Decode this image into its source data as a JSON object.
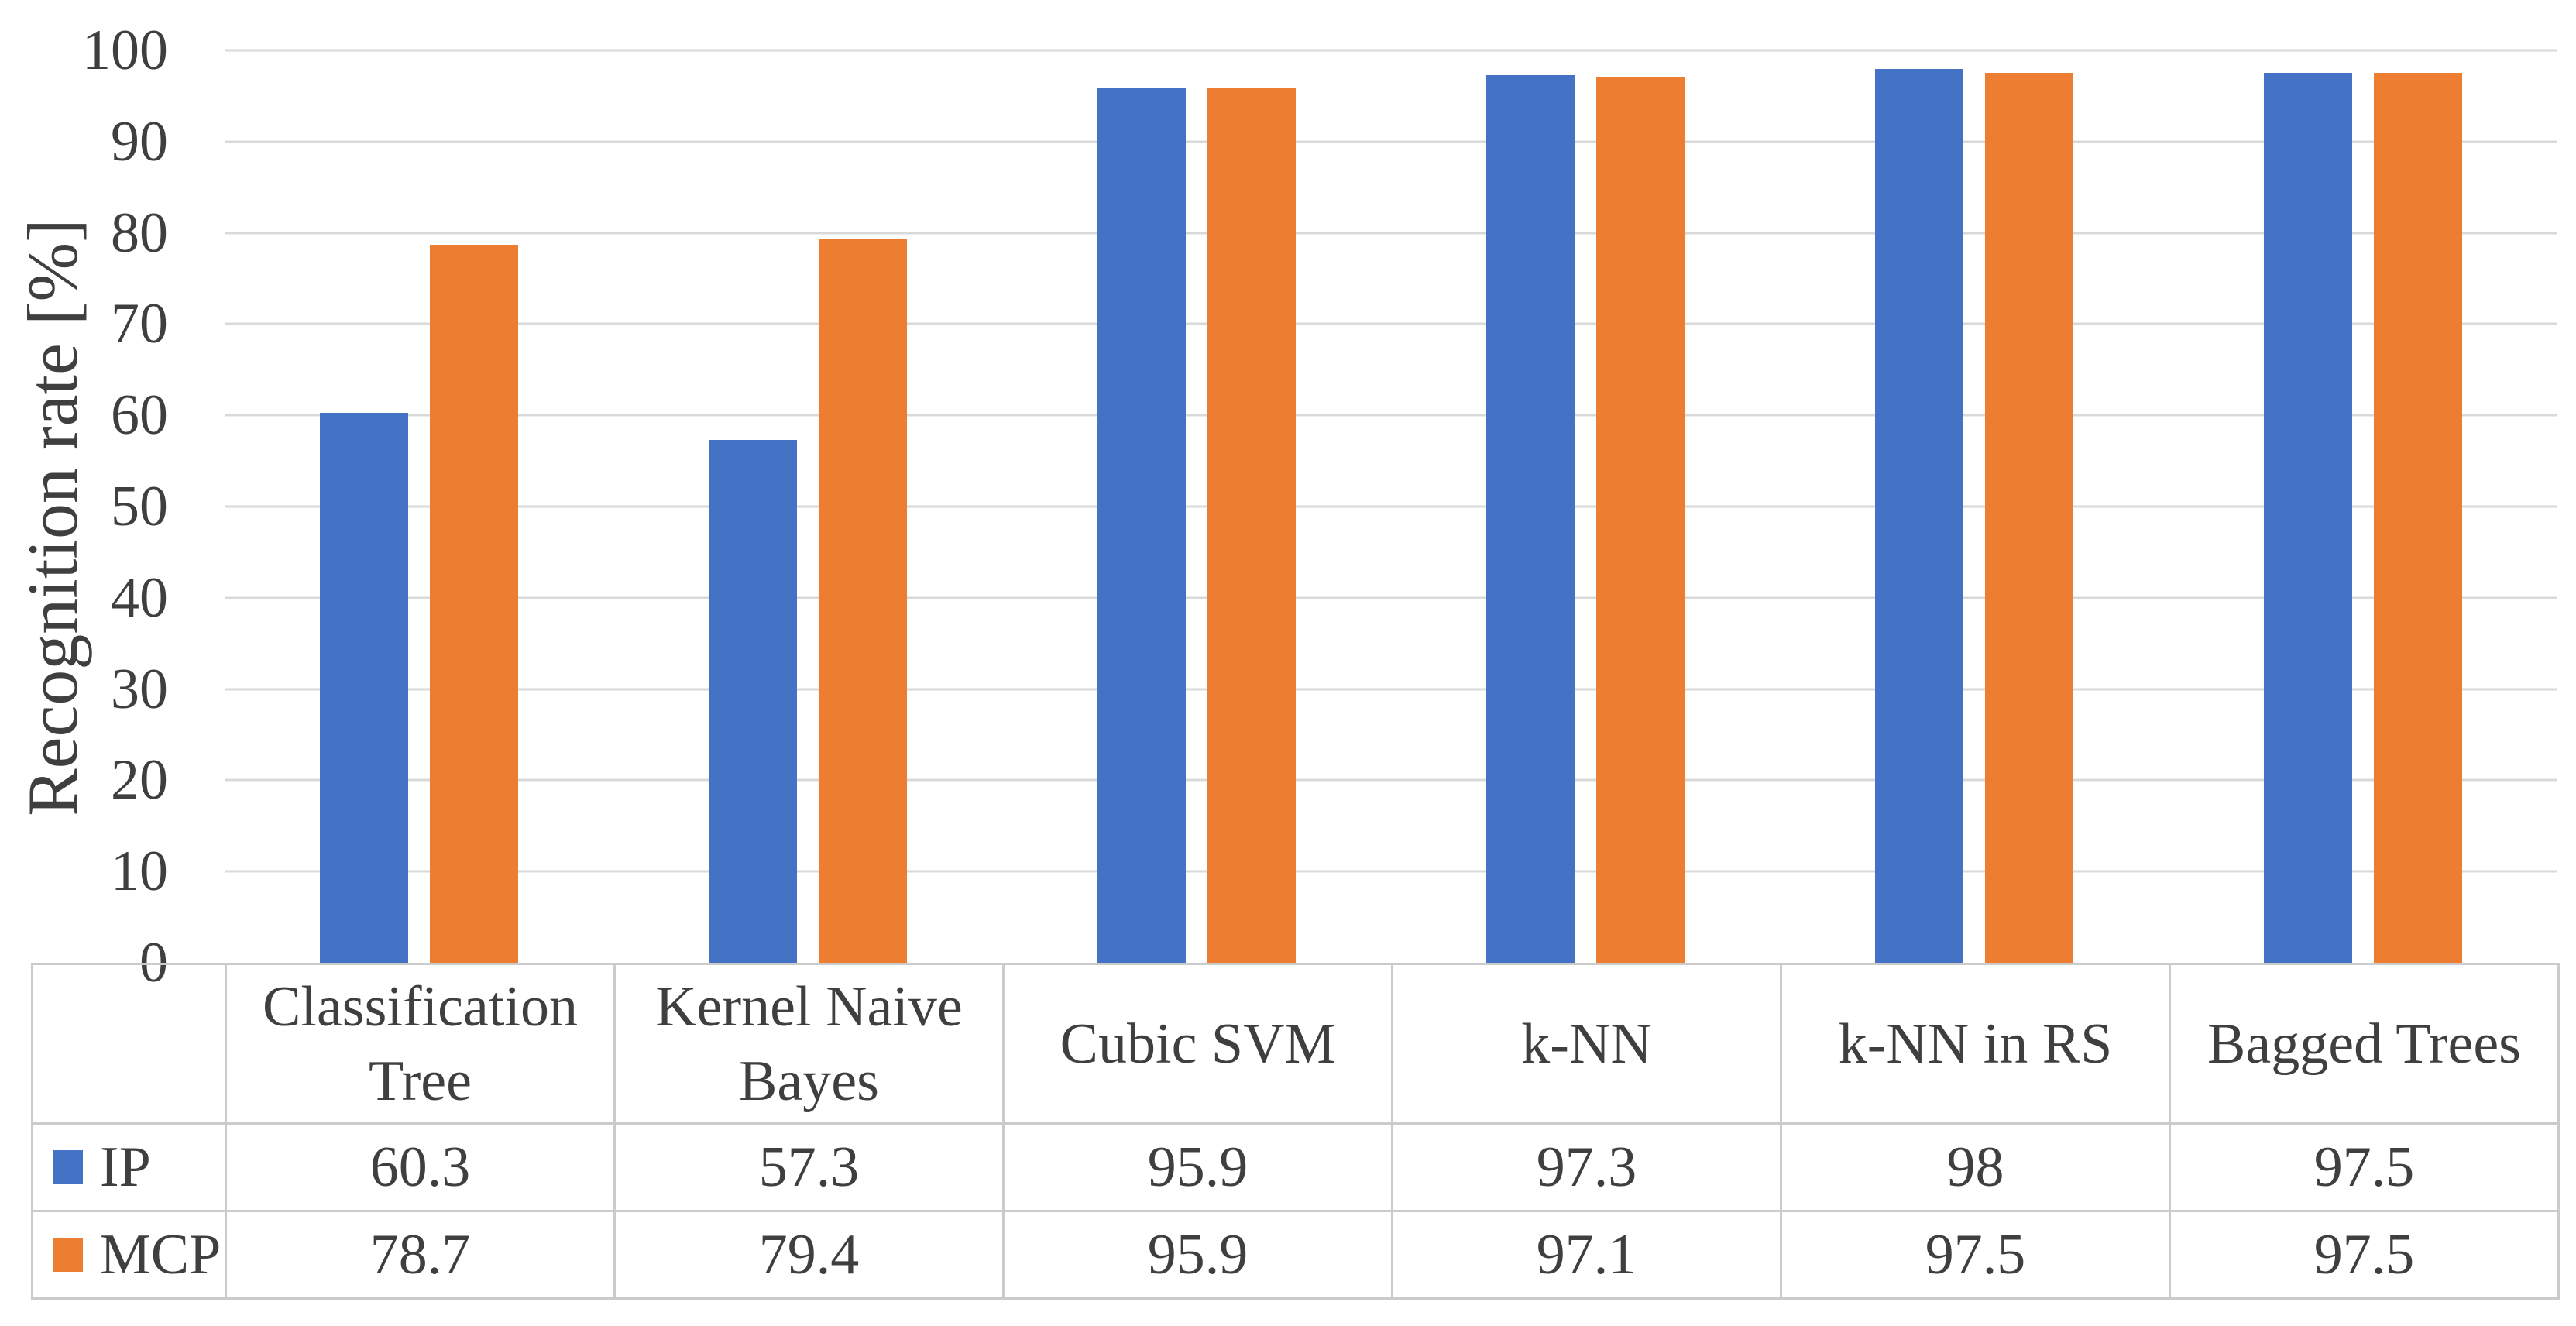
{
  "chart_data": {
    "type": "bar",
    "title": "",
    "xlabel": "",
    "ylabel": "Recognition rate [%]",
    "ylim": [
      0,
      100
    ],
    "yticks": [
      "100",
      "90",
      "80",
      "70",
      "60",
      "50",
      "40",
      "30",
      "20",
      "10",
      "0"
    ],
    "grid": true,
    "legend_position": "data-table-left",
    "categories": [
      "Classification Tree",
      "Kernel Naive Bayes",
      "Cubic SVM",
      "k-NN",
      "k-NN in RS",
      "Bagged Trees"
    ],
    "series": [
      {
        "name": "IP",
        "color": "#4472C4",
        "values": [
          60.3,
          57.3,
          95.9,
          97.3,
          98,
          97.5
        ]
      },
      {
        "name": "MCP",
        "color": "#ED7D31",
        "values": [
          78.7,
          79.4,
          95.9,
          97.1,
          97.5,
          97.5
        ]
      }
    ],
    "colors": {
      "ip_blue": "#4472C4",
      "mcp_orange": "#ED7D31",
      "gridline": "#D9D9D9",
      "table_border": "#CBCBCB",
      "text": "#3F3F3F"
    }
  }
}
